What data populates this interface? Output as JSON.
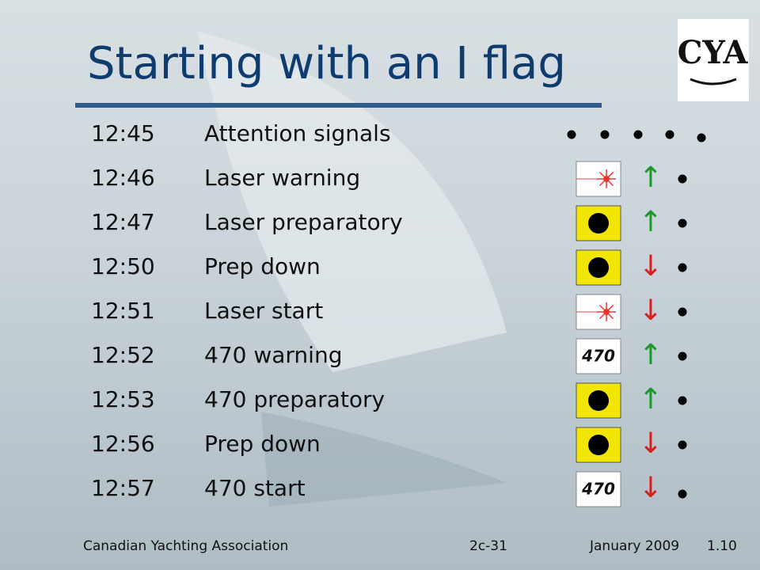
{
  "title": "Starting with an I flag",
  "logo": "CYA",
  "rows": [
    {
      "time": "12:45",
      "event": "Attention signals"
    },
    {
      "time": "12:46",
      "event": "Laser warning",
      "flag": "laser",
      "arrow": "↑",
      "arrow_color": "#1a9a2a"
    },
    {
      "time": "12:47",
      "event": "Laser preparatory",
      "flag": "I",
      "arrow": "↑",
      "arrow_color": "#1a9a2a"
    },
    {
      "time": "12:50",
      "event": "Prep down",
      "flag": "I",
      "arrow": "↓",
      "arrow_color": "#d42020"
    },
    {
      "time": "12:51",
      "event": "Laser start",
      "flag": "laser",
      "arrow": "↓",
      "arrow_color": "#d42020"
    },
    {
      "time": "12:52",
      "event": "470 warning",
      "flag": "470",
      "arrow": "↑",
      "arrow_color": "#1a9a2a"
    },
    {
      "time": "12:53",
      "event": "470 preparatory",
      "flag": "I",
      "arrow": "↑",
      "arrow_color": "#1a9a2a"
    },
    {
      "time": "12:56",
      "event": "Prep down",
      "flag": "I",
      "arrow": "↓",
      "arrow_color": "#d42020"
    },
    {
      "time": "12:57",
      "event": "470 start",
      "flag": "470",
      "arrow": "↓",
      "arrow_color": "#d42020"
    }
  ],
  "footer": {
    "org": "Canadian Yachting Association",
    "code": "2c-31",
    "date": "January 2009",
    "version": "1.10"
  }
}
